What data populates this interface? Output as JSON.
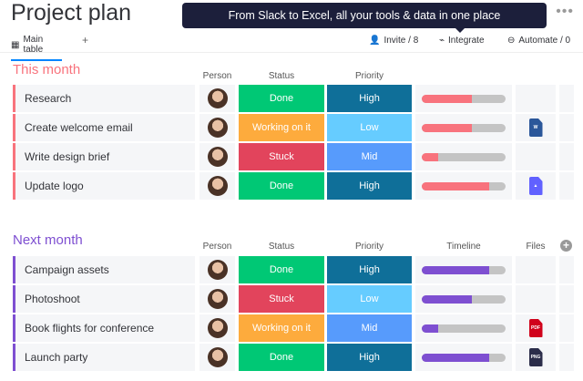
{
  "header": {
    "title": "Project plan",
    "more_icon": "more-dots-icon"
  },
  "tabs": {
    "main": "Main table",
    "add": "+",
    "invite": "Invite / 8",
    "integrate": "Integrate",
    "automate": "Automate / 0"
  },
  "tooltip": "From Slack to Excel, all your tools & data in one place",
  "columns": {
    "person": "Person",
    "status": "Status",
    "priority": "Priority",
    "timeline": "Timeline",
    "files": "Files"
  },
  "colors": {
    "done": "#00c875",
    "working": "#fdab3d",
    "stuck": "#e2445c",
    "high": "#0f6f99",
    "mid": "#579bfc",
    "low": "#66ccff",
    "this_month": "#f8737d",
    "next_month": "#7e4fd1"
  },
  "groups": [
    {
      "title": "This month",
      "color": "#f8737d",
      "rows": [
        {
          "name": "Research",
          "status": "Done",
          "priority": "High",
          "timeline": 0.6,
          "file": ""
        },
        {
          "name": "Create welcome email",
          "status": "Working on it",
          "priority": "Low",
          "timeline": 0.6,
          "file": "W"
        },
        {
          "name": "Write design brief",
          "status": "Stuck",
          "priority": "Mid",
          "timeline": 0.2,
          "file": ""
        },
        {
          "name": "Update logo",
          "status": "Done",
          "priority": "High",
          "timeline": 0.8,
          "file": "image"
        }
      ]
    },
    {
      "title": "Next month",
      "color": "#7e4fd1",
      "rows": [
        {
          "name": "Campaign assets",
          "status": "Done",
          "priority": "High",
          "timeline": 0.8,
          "file": ""
        },
        {
          "name": "Photoshoot",
          "status": "Stuck",
          "priority": "Low",
          "timeline": 0.6,
          "file": ""
        },
        {
          "name": "Book flights for conference",
          "status": "Working on it",
          "priority": "Mid",
          "timeline": 0.2,
          "file": "PDF"
        },
        {
          "name": "Launch party",
          "status": "Done",
          "priority": "High",
          "timeline": 0.8,
          "file": "PNG"
        }
      ]
    }
  ]
}
